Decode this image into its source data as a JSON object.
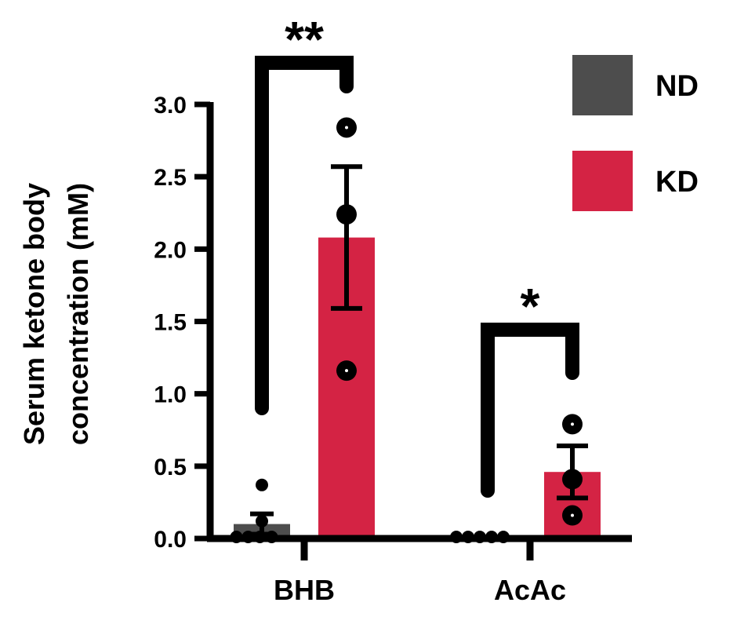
{
  "chart_data": {
    "type": "bar",
    "categories": [
      "BHB",
      "AcAc"
    ],
    "ylabel_lines": [
      "Serum ketone body",
      "concentration (mM)"
    ],
    "ylim": [
      0,
      3.0
    ],
    "yticks": [
      "0.0",
      "0.5",
      "1.0",
      "1.5",
      "2.0",
      "2.5",
      "3.0"
    ],
    "grid": false,
    "legend_position": "top-right",
    "series": [
      {
        "name": "ND",
        "color": "#4d4d4d",
        "values": [
          0.1,
          0.0
        ],
        "sem": [
          0.07,
          0.0
        ],
        "points": [
          [
            0.0,
            0.0,
            0.0,
            0.0,
            0.12,
            0.37
          ],
          [
            0.0,
            0.0,
            0.0,
            0.0,
            0.0
          ]
        ]
      },
      {
        "name": "KD",
        "color": "#d42344",
        "values": [
          2.08,
          0.46
        ],
        "sem": [
          0.49,
          0.18
        ],
        "points": [
          [
            2.84,
            2.24,
            1.16
          ],
          [
            0.79,
            0.41,
            0.16
          ]
        ]
      }
    ],
    "significance": [
      {
        "category": "BHB",
        "label": "**"
      },
      {
        "category": "AcAc",
        "label": "*"
      }
    ]
  }
}
